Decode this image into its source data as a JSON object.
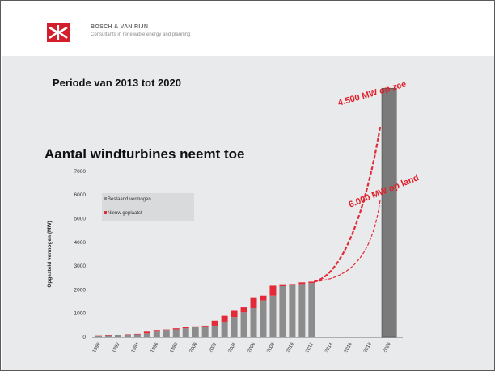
{
  "header": {
    "brand_name": "BOSCH & VAN RIJN",
    "brand_tagline": "Consultants in renewable energy and planning",
    "logo_icon": "turbine-cross-logo-icon",
    "accent_color": "#d21f2b"
  },
  "slide": {
    "period_title": "Periode van 2013 tot 2020",
    "main_title": "Aantal windturbines neemt toe",
    "annotation_sea": "4.500 MW op zee",
    "annotation_land": "6.000 MW op land"
  },
  "chart_data": {
    "type": "bar",
    "ylabel": "Opgesteld vermogen (MW)",
    "xlabel": "",
    "ylim": [
      0,
      7000
    ],
    "yticks": [
      0,
      1000,
      2000,
      3000,
      4000,
      5000,
      6000,
      7000
    ],
    "grid": false,
    "legend_position": "top-left",
    "x": [
      1990,
      1991,
      1992,
      1993,
      1994,
      1995,
      1996,
      1997,
      1998,
      1999,
      2000,
      2001,
      2002,
      2003,
      2004,
      2005,
      2006,
      2007,
      2008,
      2009,
      2010,
      2011,
      2012
    ],
    "xtick_labels": [
      "1990",
      "1992",
      "1994",
      "1996",
      "1998",
      "2000",
      "2002",
      "2004",
      "2006",
      "2008",
      "2010",
      "2012",
      "2014",
      "2016",
      "2018",
      "2020"
    ],
    "series": [
      {
        "name": "Bestaand vermogen",
        "color": "#8c8c8c",
        "values": [
          40,
          50,
          80,
          100,
          120,
          160,
          230,
          300,
          320,
          370,
          420,
          450,
          480,
          650,
          850,
          1050,
          1230,
          1550,
          1750,
          2150,
          2220,
          2240,
          2280
        ]
      },
      {
        "name": "Nieuw geplaatst",
        "color": "#e32b38",
        "values": [
          10,
          30,
          20,
          20,
          20,
          70,
          70,
          20,
          50,
          50,
          30,
          30,
          210,
          250,
          260,
          210,
          420,
          200,
          420,
          80,
          20,
          70,
          60
        ]
      }
    ],
    "target_2020": {
      "label": "2020",
      "value": 10500,
      "color": "#7a7a7a"
    },
    "projections": [
      {
        "name": "4.500 MW op zee",
        "from_year": 2012,
        "from_value": 2340,
        "to_year": 2020,
        "to_value": 8900,
        "color": "#e32b38",
        "style": "dashed-bold"
      },
      {
        "name": "6.000 MW op land",
        "from_year": 2012,
        "from_value": 2340,
        "to_year": 2020,
        "to_value": 5800,
        "color": "#e32b38",
        "style": "dashed"
      }
    ]
  }
}
